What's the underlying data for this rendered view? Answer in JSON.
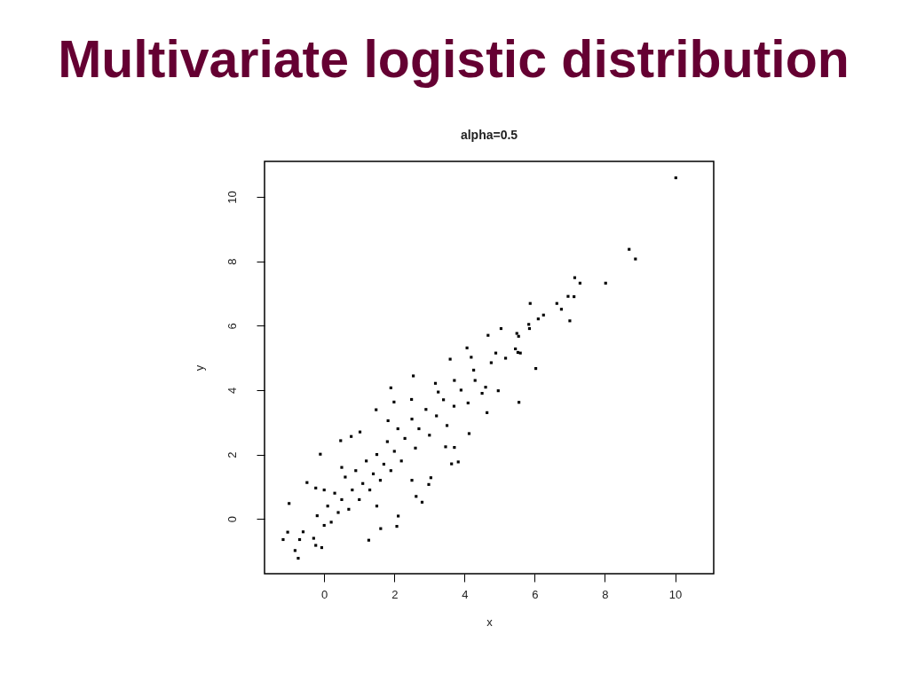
{
  "chart_data": {
    "type": "scatter",
    "title": "Multivariate logistic distribution",
    "subtitle": "alpha=0.5",
    "xlabel": "x",
    "ylabel": "y",
    "xlim": [
      -1.7,
      11.1
    ],
    "ylim": [
      -1.7,
      11.1
    ],
    "xticks": [
      0,
      2,
      4,
      6,
      8,
      10
    ],
    "yticks": [
      0,
      2,
      4,
      6,
      8,
      10
    ],
    "marker": "square",
    "color": "#000000",
    "x": [
      10.02,
      8.69,
      8.87,
      8.02,
      7.14,
      7.29,
      7.12,
      6.95,
      6.63,
      6.76,
      7.0,
      5.87,
      6.25,
      6.1,
      5.83,
      5.85,
      5.04,
      4.67,
      5.49,
      5.54,
      4.07,
      4.19,
      4.89,
      5.45,
      5.59,
      5.17,
      3.59,
      5.55,
      6.03,
      4.96,
      4.6,
      4.64,
      4.13,
      5.52,
      -0.74,
      -0.83,
      -1.0,
      -1.17,
      -1.04,
      -0.7,
      -0.07,
      -0.24,
      -0.49,
      -0.24,
      -0.11,
      0.47,
      0.77,
      1.27,
      1.61,
      2.07,
      2.11,
      2.79,
      2.62,
      2.98,
      3.04,
      3.63,
      3.82,
      3.71,
      3.46,
      1.9,
      1.48,
      2.54,
      2.49,
      1.99,
      1.02,
      1.82,
      3.17,
      3.25,
      3.71,
      4.26,
      4.76,
      -0.6,
      -0.3,
      -0.2,
      0.0,
      0.1,
      0.2,
      0.3,
      0.4,
      0.5,
      0.6,
      0.7,
      0.8,
      0.9,
      1.0,
      1.1,
      1.2,
      1.3,
      1.4,
      1.5,
      1.6,
      1.7,
      1.8,
      1.9,
      2.0,
      2.1,
      2.2,
      2.3,
      2.5,
      2.6,
      2.7,
      2.9,
      3.0,
      3.2,
      3.4,
      3.5,
      3.7,
      3.9,
      4.1,
      4.3,
      4.5,
      0.0,
      0.5,
      1.5,
      2.5
    ],
    "values": [
      10.59,
      8.37,
      8.07,
      7.32,
      7.49,
      7.32,
      6.9,
      6.91,
      6.69,
      6.51,
      6.15,
      6.69,
      6.33,
      6.21,
      6.04,
      5.91,
      5.91,
      5.7,
      5.76,
      5.67,
      5.31,
      5.02,
      5.15,
      5.28,
      5.15,
      4.99,
      4.96,
      3.62,
      4.67,
      3.98,
      4.09,
      3.3,
      2.65,
      5.17,
      -1.22,
      -0.98,
      0.48,
      -0.64,
      -0.41,
      -0.64,
      -0.89,
      -0.82,
      1.13,
      0.96,
      2.01,
      2.43,
      2.56,
      -0.66,
      -0.3,
      -0.23,
      0.09,
      0.52,
      0.7,
      1.07,
      1.28,
      1.71,
      1.77,
      2.22,
      2.24,
      4.07,
      3.39,
      4.44,
      3.71,
      3.63,
      2.7,
      3.05,
      4.21,
      3.94,
      4.3,
      4.62,
      4.85,
      -0.4,
      -0.6,
      0.1,
      -0.2,
      0.4,
      -0.1,
      0.8,
      0.2,
      0.6,
      1.3,
      0.3,
      0.9,
      1.5,
      0.6,
      1.1,
      1.8,
      0.9,
      1.4,
      2.0,
      1.2,
      1.7,
      2.4,
      1.5,
      2.1,
      2.8,
      1.8,
      2.5,
      3.1,
      2.2,
      2.8,
      3.4,
      2.6,
      3.2,
      3.7,
      2.9,
      3.5,
      4.0,
      3.6,
      4.3,
      3.9,
      0.9,
      1.6,
      0.4,
      1.2
    ]
  }
}
